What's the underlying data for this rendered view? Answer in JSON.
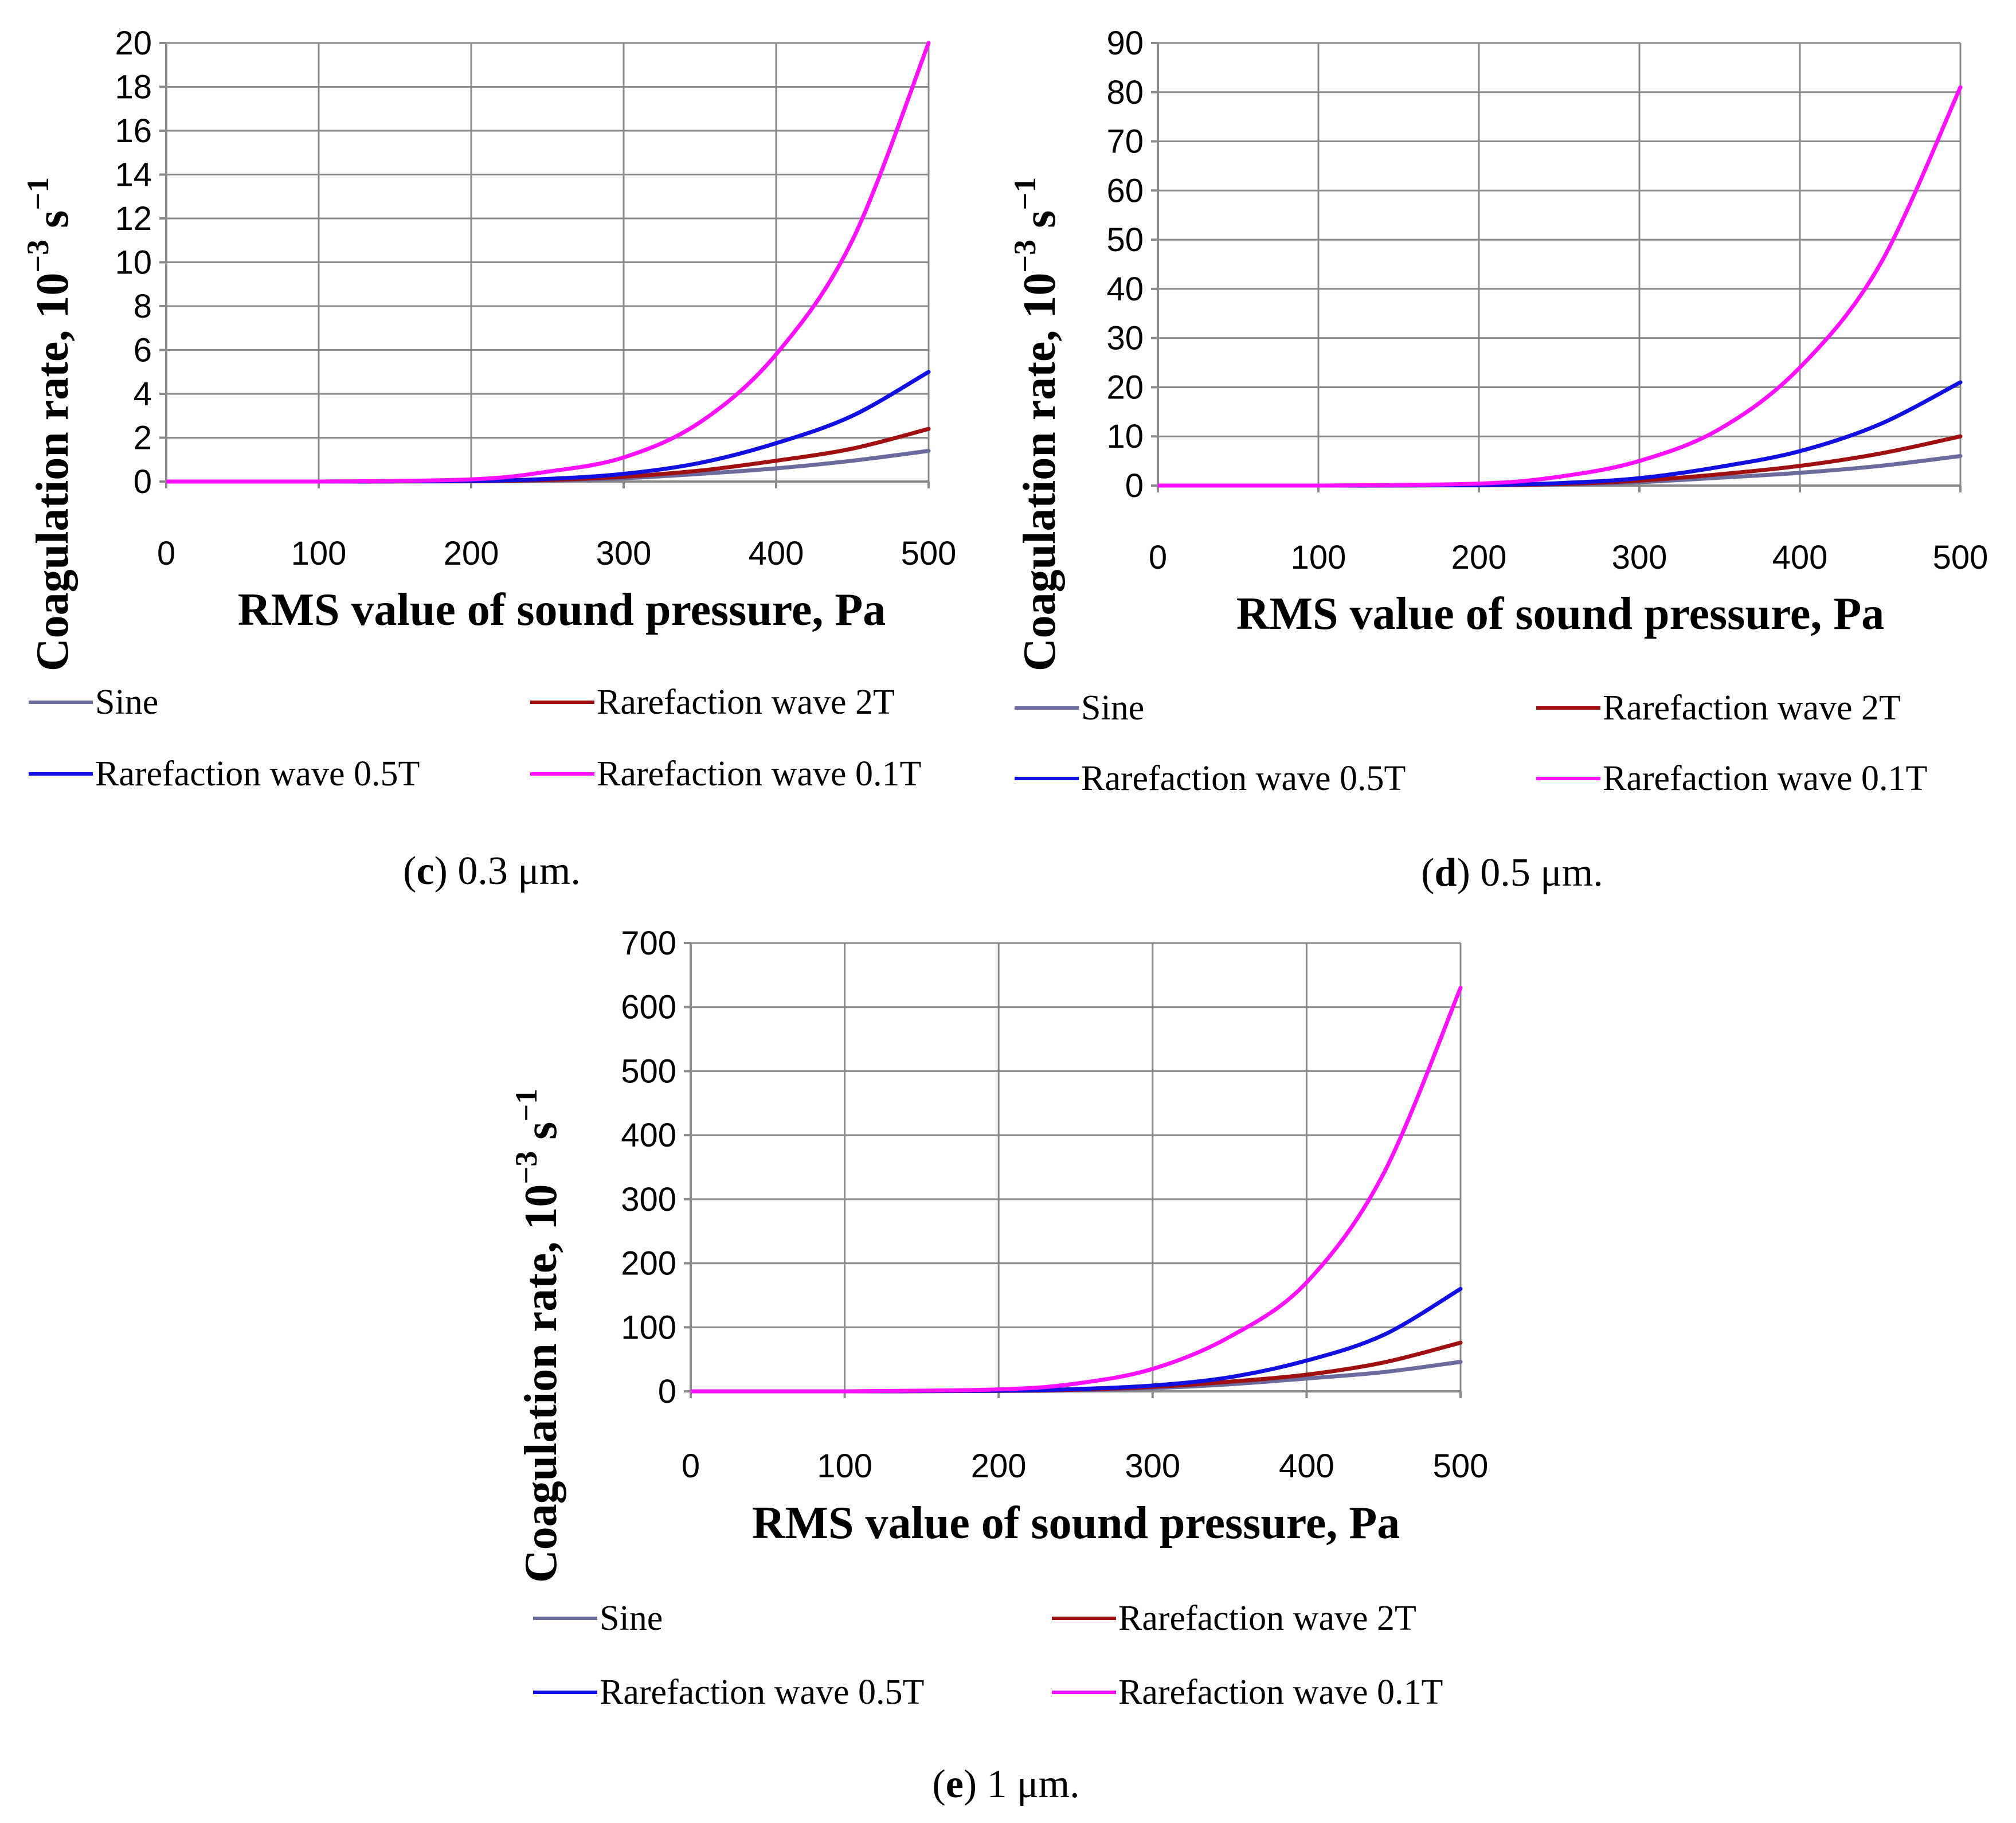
{
  "figure_label": "Coagulation rate vs RMS sound pressure for particle sizes 0.3 µm, 0.5 µm and 1 µm",
  "series_colors": {
    "Sine": "#6B6B9E",
    "Rarefaction wave 2T": "#A01010",
    "Rarefaction wave 0.5T": "#1010E0",
    "Rarefaction wave 0.1T": "#FF10FF"
  },
  "chart_data": [
    {
      "id": "c",
      "type": "line",
      "caption": {
        "letter": "c",
        "text": " 0.3 μm."
      },
      "xlabel": "RMS value of sound pressure, Pa",
      "ylabel": "Coagulation rate, 10",
      "ylabel_exp1": "−3",
      "ylabel_mid": " s",
      "ylabel_exp2": "−1",
      "xlim": [
        0,
        500
      ],
      "ylim": [
        0,
        20
      ],
      "xticks": [
        0,
        100,
        200,
        300,
        400,
        500
      ],
      "yticks": [
        0,
        2,
        4,
        6,
        8,
        10,
        12,
        14,
        16,
        18,
        20
      ],
      "grid": true,
      "legend": [
        "Sine",
        "Rarefaction wave 2T",
        "Rarefaction wave 0.5T",
        "Rarefaction wave 0.1T"
      ],
      "x": [
        0,
        100,
        200,
        250,
        300,
        350,
        400,
        450,
        500
      ],
      "series": [
        {
          "name": "Sine",
          "values": [
            0,
            0,
            0.01,
            0.04,
            0.15,
            0.35,
            0.6,
            0.95,
            1.4
          ]
        },
        {
          "name": "Rarefaction wave 2T",
          "values": [
            0,
            0,
            0.02,
            0.07,
            0.22,
            0.5,
            0.95,
            1.5,
            2.4
          ]
        },
        {
          "name": "Rarefaction wave 0.5T",
          "values": [
            0,
            0,
            0.03,
            0.12,
            0.35,
            0.85,
            1.75,
            3.0,
            5.0
          ]
        },
        {
          "name": "Rarefaction wave 0.1T",
          "values": [
            0,
            0,
            0.1,
            0.45,
            1.1,
            2.7,
            5.8,
            11.0,
            20.0
          ]
        }
      ]
    },
    {
      "id": "d",
      "type": "line",
      "caption": {
        "letter": "d",
        "text": " 0.5 μm."
      },
      "xlabel": "RMS value of sound pressure, Pa",
      "ylabel": "Coagulation rate, 10",
      "ylabel_exp1": "−3",
      "ylabel_mid": " s",
      "ylabel_exp2": "−1",
      "xlim": [
        0,
        500
      ],
      "ylim": [
        0,
        90
      ],
      "xticks": [
        0,
        100,
        200,
        300,
        400,
        500
      ],
      "yticks": [
        0,
        10,
        20,
        30,
        40,
        50,
        60,
        70,
        80,
        90
      ],
      "grid": true,
      "legend": [
        "Sine",
        "Rarefaction wave 2T",
        "Rarefaction wave 0.5T",
        "Rarefaction wave 0.1T"
      ],
      "x": [
        0,
        100,
        200,
        250,
        300,
        350,
        400,
        450,
        500
      ],
      "series": [
        {
          "name": "Sine",
          "values": [
            0,
            0,
            0.05,
            0.2,
            0.7,
            1.6,
            2.6,
            4.0,
            6.0
          ]
        },
        {
          "name": "Rarefaction wave 2T",
          "values": [
            0,
            0,
            0.08,
            0.3,
            1.0,
            2.3,
            4.0,
            6.5,
            10.0
          ]
        },
        {
          "name": "Rarefaction wave 0.5T",
          "values": [
            0,
            0,
            0.1,
            0.5,
            1.5,
            3.8,
            7.0,
            12.5,
            21.0
          ]
        },
        {
          "name": "Rarefaction wave 0.1T",
          "values": [
            0,
            0,
            0.4,
            1.8,
            5.0,
            11.5,
            24.0,
            45.0,
            81.0
          ]
        }
      ]
    },
    {
      "id": "e",
      "type": "line",
      "caption": {
        "letter": "e",
        "text": " 1 μm."
      },
      "xlabel": "RMS value of sound pressure, Pa",
      "ylabel": "Coagulation rate, 10",
      "ylabel_exp1": "−3",
      "ylabel_mid": " s",
      "ylabel_exp2": "−1",
      "xlim": [
        0,
        500
      ],
      "ylim": [
        0,
        700
      ],
      "xticks": [
        0,
        100,
        200,
        300,
        400,
        500
      ],
      "yticks": [
        0,
        100,
        200,
        300,
        400,
        500,
        600,
        700
      ],
      "grid": true,
      "legend": [
        "Sine",
        "Rarefaction wave 2T",
        "Rarefaction wave 0.5T",
        "Rarefaction wave 0.1T"
      ],
      "x": [
        0,
        100,
        200,
        250,
        300,
        350,
        400,
        450,
        500
      ],
      "series": [
        {
          "name": "Sine",
          "values": [
            0,
            0,
            0.5,
            1.5,
            5.0,
            11.0,
            20.0,
            30.0,
            46.0
          ]
        },
        {
          "name": "Rarefaction wave 2T",
          "values": [
            0,
            0,
            0.8,
            2.5,
            7.0,
            15.0,
            26.0,
            45.0,
            76.0
          ]
        },
        {
          "name": "Rarefaction wave 0.5T",
          "values": [
            0,
            0,
            1.2,
            3.5,
            9.0,
            22.0,
            48.0,
            88.0,
            160.0
          ]
        },
        {
          "name": "Rarefaction wave 0.1T",
          "values": [
            0,
            0,
            3.0,
            12.0,
            35.0,
            85.0,
            170.0,
            340.0,
            630.0
          ]
        }
      ]
    }
  ]
}
